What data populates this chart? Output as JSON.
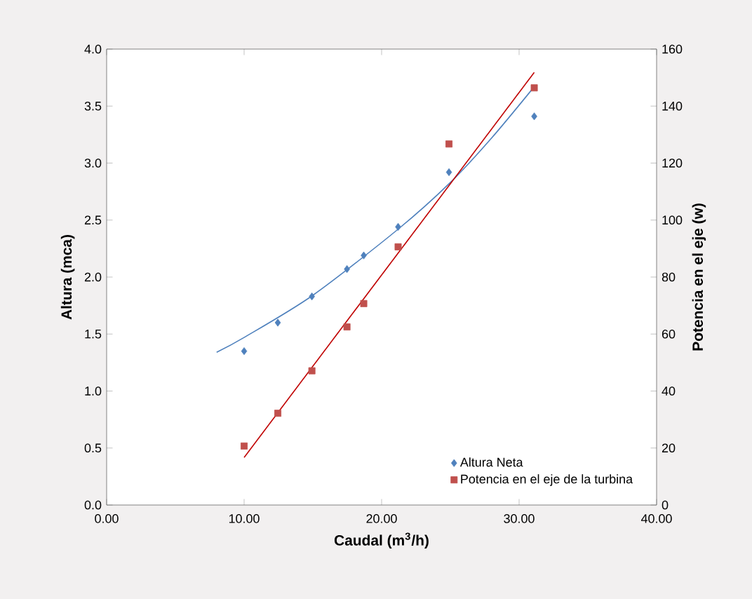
{
  "chart_data": {
    "type": "scatter",
    "xlabel": "Caudal (m$^{3}$/h)",
    "ylabel": "Altura (mca)",
    "y2label": "Potencia en el eje (w)",
    "xlim": [
      0,
      40
    ],
    "xticks": [
      {
        "value": 0,
        "label": "0.00"
      },
      {
        "value": 10,
        "label": "10.00"
      },
      {
        "value": 20,
        "label": "20.00"
      },
      {
        "value": 30,
        "label": "30.00"
      },
      {
        "value": 40,
        "label": "40.00"
      }
    ],
    "ylim": [
      0,
      4
    ],
    "yticks": [
      {
        "value": 0,
        "label": "0.0"
      },
      {
        "value": 0.5,
        "label": "0.5"
      },
      {
        "value": 1,
        "label": "1.0"
      },
      {
        "value": 1.5,
        "label": "1.5"
      },
      {
        "value": 2,
        "label": "2.0"
      },
      {
        "value": 2.5,
        "label": "2.5"
      },
      {
        "value": 3,
        "label": "3.0"
      },
      {
        "value": 3.5,
        "label": "3.5"
      },
      {
        "value": 4,
        "label": "4.0"
      }
    ],
    "y2lim": [
      0,
      160
    ],
    "y2ticks": [
      0,
      20,
      40,
      60,
      80,
      100,
      120,
      140,
      160
    ],
    "legend": "bottom right",
    "grid": false,
    "series": [
      {
        "name": "Altura Neta",
        "marker": "diamond",
        "color": "#4f81bd",
        "x": [
          10,
          12.45,
          14.93,
          17.48,
          18.7,
          21.2,
          24.9,
          31.1
        ],
        "values": [
          1.35,
          1.6,
          1.83,
          2.07,
          2.19,
          2.44,
          2.92,
          3.41
        ]
      },
      {
        "name": "Potencia en el eje de la turbina",
        "marker": "square",
        "axis": "y2",
        "color": "#c0504d",
        "x": [
          10,
          12.45,
          14.93,
          17.48,
          18.7,
          21.2,
          24.9,
          31.1
        ],
        "values": [
          20.7,
          32.2,
          47.1,
          62.5,
          70.7,
          90.6,
          126.7,
          146.4
        ]
      },
      {
        "type": "line",
        "marker": "none",
        "line_style": "solid",
        "color": "#4f81bd",
        "x": [
          8,
          10,
          15,
          21.2,
          25,
          28,
          31.1
        ],
        "values": [
          1.34,
          1.47,
          1.84,
          2.42,
          2.83,
          3.22,
          3.67
        ]
      },
      {
        "type": "line",
        "marker": "none",
        "line_style": "solid",
        "axis": "y2",
        "color": "#c00000",
        "x": [
          10,
          31.1
        ],
        "values": [
          16.7,
          151.8
        ]
      }
    ]
  }
}
